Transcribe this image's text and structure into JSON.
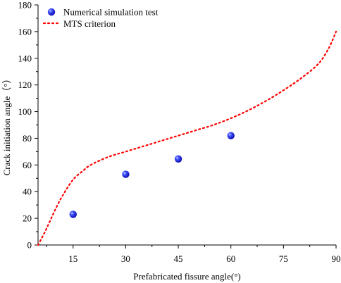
{
  "chart_data": {
    "type": "scatter",
    "xlabel": "Prefabricated fissure angle(°)",
    "ylabel": "Crack initiation angle（°）",
    "xlim": [
      5,
      90
    ],
    "ylim": [
      0,
      180
    ],
    "x_ticks": [
      15,
      30,
      45,
      60,
      75,
      90
    ],
    "y_ticks": [
      0,
      20,
      40,
      60,
      80,
      100,
      120,
      140,
      160,
      180
    ],
    "grid": false,
    "legend_position": "top-left",
    "series": [
      {
        "name": "Numerical simulation test",
        "kind": "scatter",
        "marker": "sphere",
        "color": "#1010e0",
        "x": [
          15,
          30,
          45,
          60
        ],
        "y": [
          23,
          53,
          64.5,
          82
        ]
      },
      {
        "name": "MTS criterion",
        "kind": "line",
        "style": "dotted",
        "color": "#ff0000",
        "x": [
          5,
          7,
          10,
          12,
          15,
          18,
          20,
          25,
          30,
          35,
          40,
          45,
          50,
          55,
          60,
          65,
          70,
          75,
          80,
          85,
          88,
          90
        ],
        "y": [
          0,
          10,
          27,
          37,
          49,
          56,
          60,
          66,
          70,
          74,
          78,
          82,
          86,
          90,
          95,
          101,
          108,
          116,
          125,
          136,
          148,
          160
        ]
      }
    ]
  }
}
